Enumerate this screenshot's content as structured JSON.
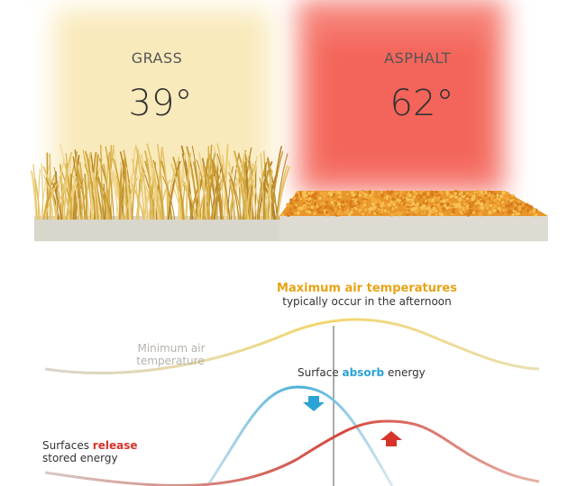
{
  "panels": [
    {
      "label": "GRASS",
      "temperature": "39°"
    },
    {
      "label": "ASPHALT",
      "temperature": "62°"
    }
  ],
  "annotations": {
    "maximum": {
      "title": "Maximum air temperatures",
      "subtitle": "typically occur in the afternoon"
    },
    "minimum": {
      "lines": [
        "Minimum air",
        "temperature"
      ]
    },
    "absorb": {
      "before": "Surface",
      "highlight": "absorb",
      "after": "energy"
    },
    "release": {
      "before": "Surfaces",
      "highlight": "release",
      "after": "stored energy"
    }
  }
}
